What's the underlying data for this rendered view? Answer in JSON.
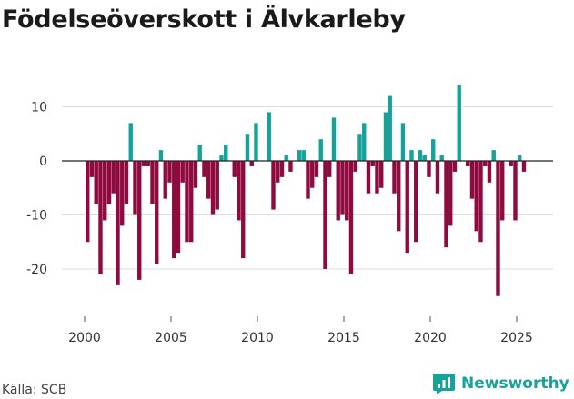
{
  "title": "Födelseöverskott i Älvkarleby",
  "source": "Källa: SCB",
  "brand": {
    "name": "Newsworthy",
    "icon": "newsworthy-logo-icon"
  },
  "colors": {
    "positive": "#14a39a",
    "negative": "#8f0b3f",
    "grid": "#dddddd",
    "axis": "#222222"
  },
  "chart_data": {
    "type": "bar",
    "title": "Födelseöverskott i Älvkarleby",
    "xlabel": "",
    "ylabel": "",
    "ylim": [
      -27,
      17
    ],
    "xlim": [
      1998.7,
      2026.2
    ],
    "y_ticks": [
      -20,
      -10,
      0,
      10
    ],
    "x_ticks": [
      2000,
      2005,
      2010,
      2015,
      2020,
      2025
    ],
    "grid": true,
    "x": [
      2000.17,
      2000.42,
      2000.67,
      2000.92,
      2001.17,
      2001.42,
      2001.67,
      2001.92,
      2002.17,
      2002.42,
      2002.67,
      2002.92,
      2003.17,
      2003.42,
      2003.67,
      2003.92,
      2004.17,
      2004.42,
      2004.67,
      2004.92,
      2005.17,
      2005.42,
      2005.67,
      2005.92,
      2006.17,
      2006.42,
      2006.67,
      2006.92,
      2007.17,
      2007.42,
      2007.67,
      2007.92,
      2008.17,
      2008.42,
      2008.67,
      2008.92,
      2009.17,
      2009.42,
      2009.67,
      2009.92,
      2010.17,
      2010.42,
      2010.67,
      2010.92,
      2011.17,
      2011.42,
      2011.67,
      2011.92,
      2012.17,
      2012.42,
      2012.67,
      2012.92,
      2013.17,
      2013.42,
      2013.67,
      2013.92,
      2014.17,
      2014.42,
      2014.67,
      2014.92,
      2015.17,
      2015.42,
      2015.67,
      2015.92,
      2016.17,
      2016.42,
      2016.67,
      2016.92,
      2017.17,
      2017.42,
      2017.67,
      2017.92,
      2018.17,
      2018.42,
      2018.67,
      2018.92,
      2019.17,
      2019.42,
      2019.67,
      2019.92,
      2020.17,
      2020.42,
      2020.67,
      2020.92,
      2021.17,
      2021.42,
      2021.67,
      2021.92,
      2022.17,
      2022.42,
      2022.67,
      2022.92,
      2023.17,
      2023.42,
      2023.67,
      2023.92,
      2024.17,
      2024.42,
      2024.67,
      2024.92,
      2025.17,
      2025.42
    ],
    "values": [
      -15,
      -3,
      -8,
      -21,
      -11,
      -8,
      -6,
      -23,
      -12,
      -8,
      7,
      -10,
      -22,
      -1,
      -1,
      -8,
      -19,
      2,
      -7,
      -4,
      -18,
      -17,
      -4,
      -15,
      -15,
      -5,
      3,
      -3,
      -7,
      -10,
      -9,
      1,
      3,
      0,
      -3,
      -11,
      -18,
      5,
      -1,
      7,
      0,
      0,
      9,
      -9,
      -4,
      -3,
      1,
      -2,
      0,
      2,
      2,
      -7,
      -5,
      -3,
      4,
      -20,
      -3,
      8,
      -11,
      -10,
      -11,
      -21,
      -2,
      5,
      7,
      -6,
      -1,
      -6,
      -5,
      9,
      12,
      -6,
      -13,
      7,
      -17,
      2,
      -15,
      2,
      1,
      -3,
      4,
      -6,
      1,
      -16,
      -12,
      -2,
      14,
      0,
      -1,
      -7,
      -13,
      -15,
      -1,
      -4,
      2,
      -25,
      -11,
      0,
      -1,
      -11,
      1,
      -2
    ]
  }
}
